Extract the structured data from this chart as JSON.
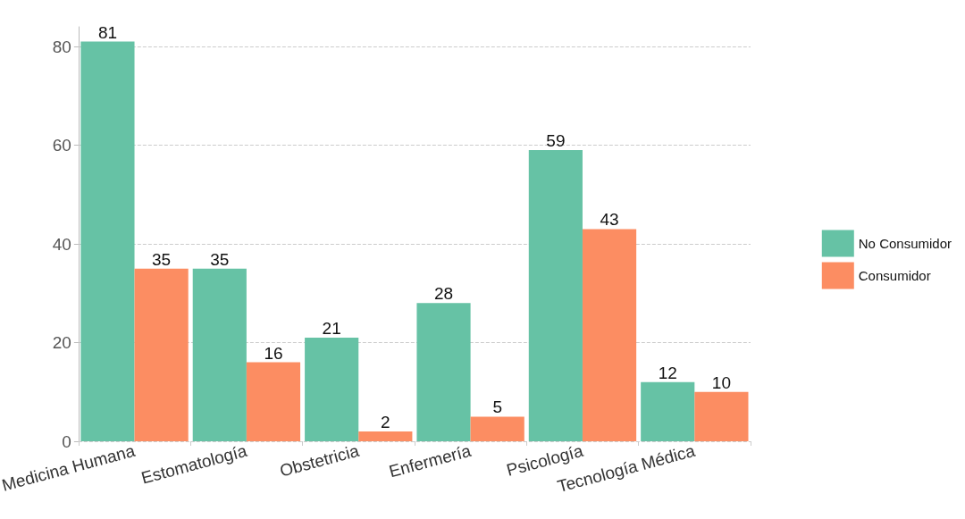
{
  "chart_data": {
    "type": "bar",
    "categories": [
      "Medicina Humana",
      "Estomatología",
      "Obstetricia",
      "Enfermería",
      "Psicología",
      "Tecnología Médica"
    ],
    "series": [
      {
        "name": "No Consumidor",
        "color": "#66c2a5",
        "values": [
          81,
          35,
          21,
          28,
          59,
          12
        ]
      },
      {
        "name": "Consumidor",
        "color": "#fc8d62",
        "values": [
          35,
          16,
          2,
          5,
          43,
          10
        ]
      }
    ],
    "ylim": [
      0,
      84
    ],
    "yticks": [
      0,
      20,
      40,
      60,
      80
    ],
    "grid": "y",
    "legend": "right",
    "data_labels": true
  }
}
